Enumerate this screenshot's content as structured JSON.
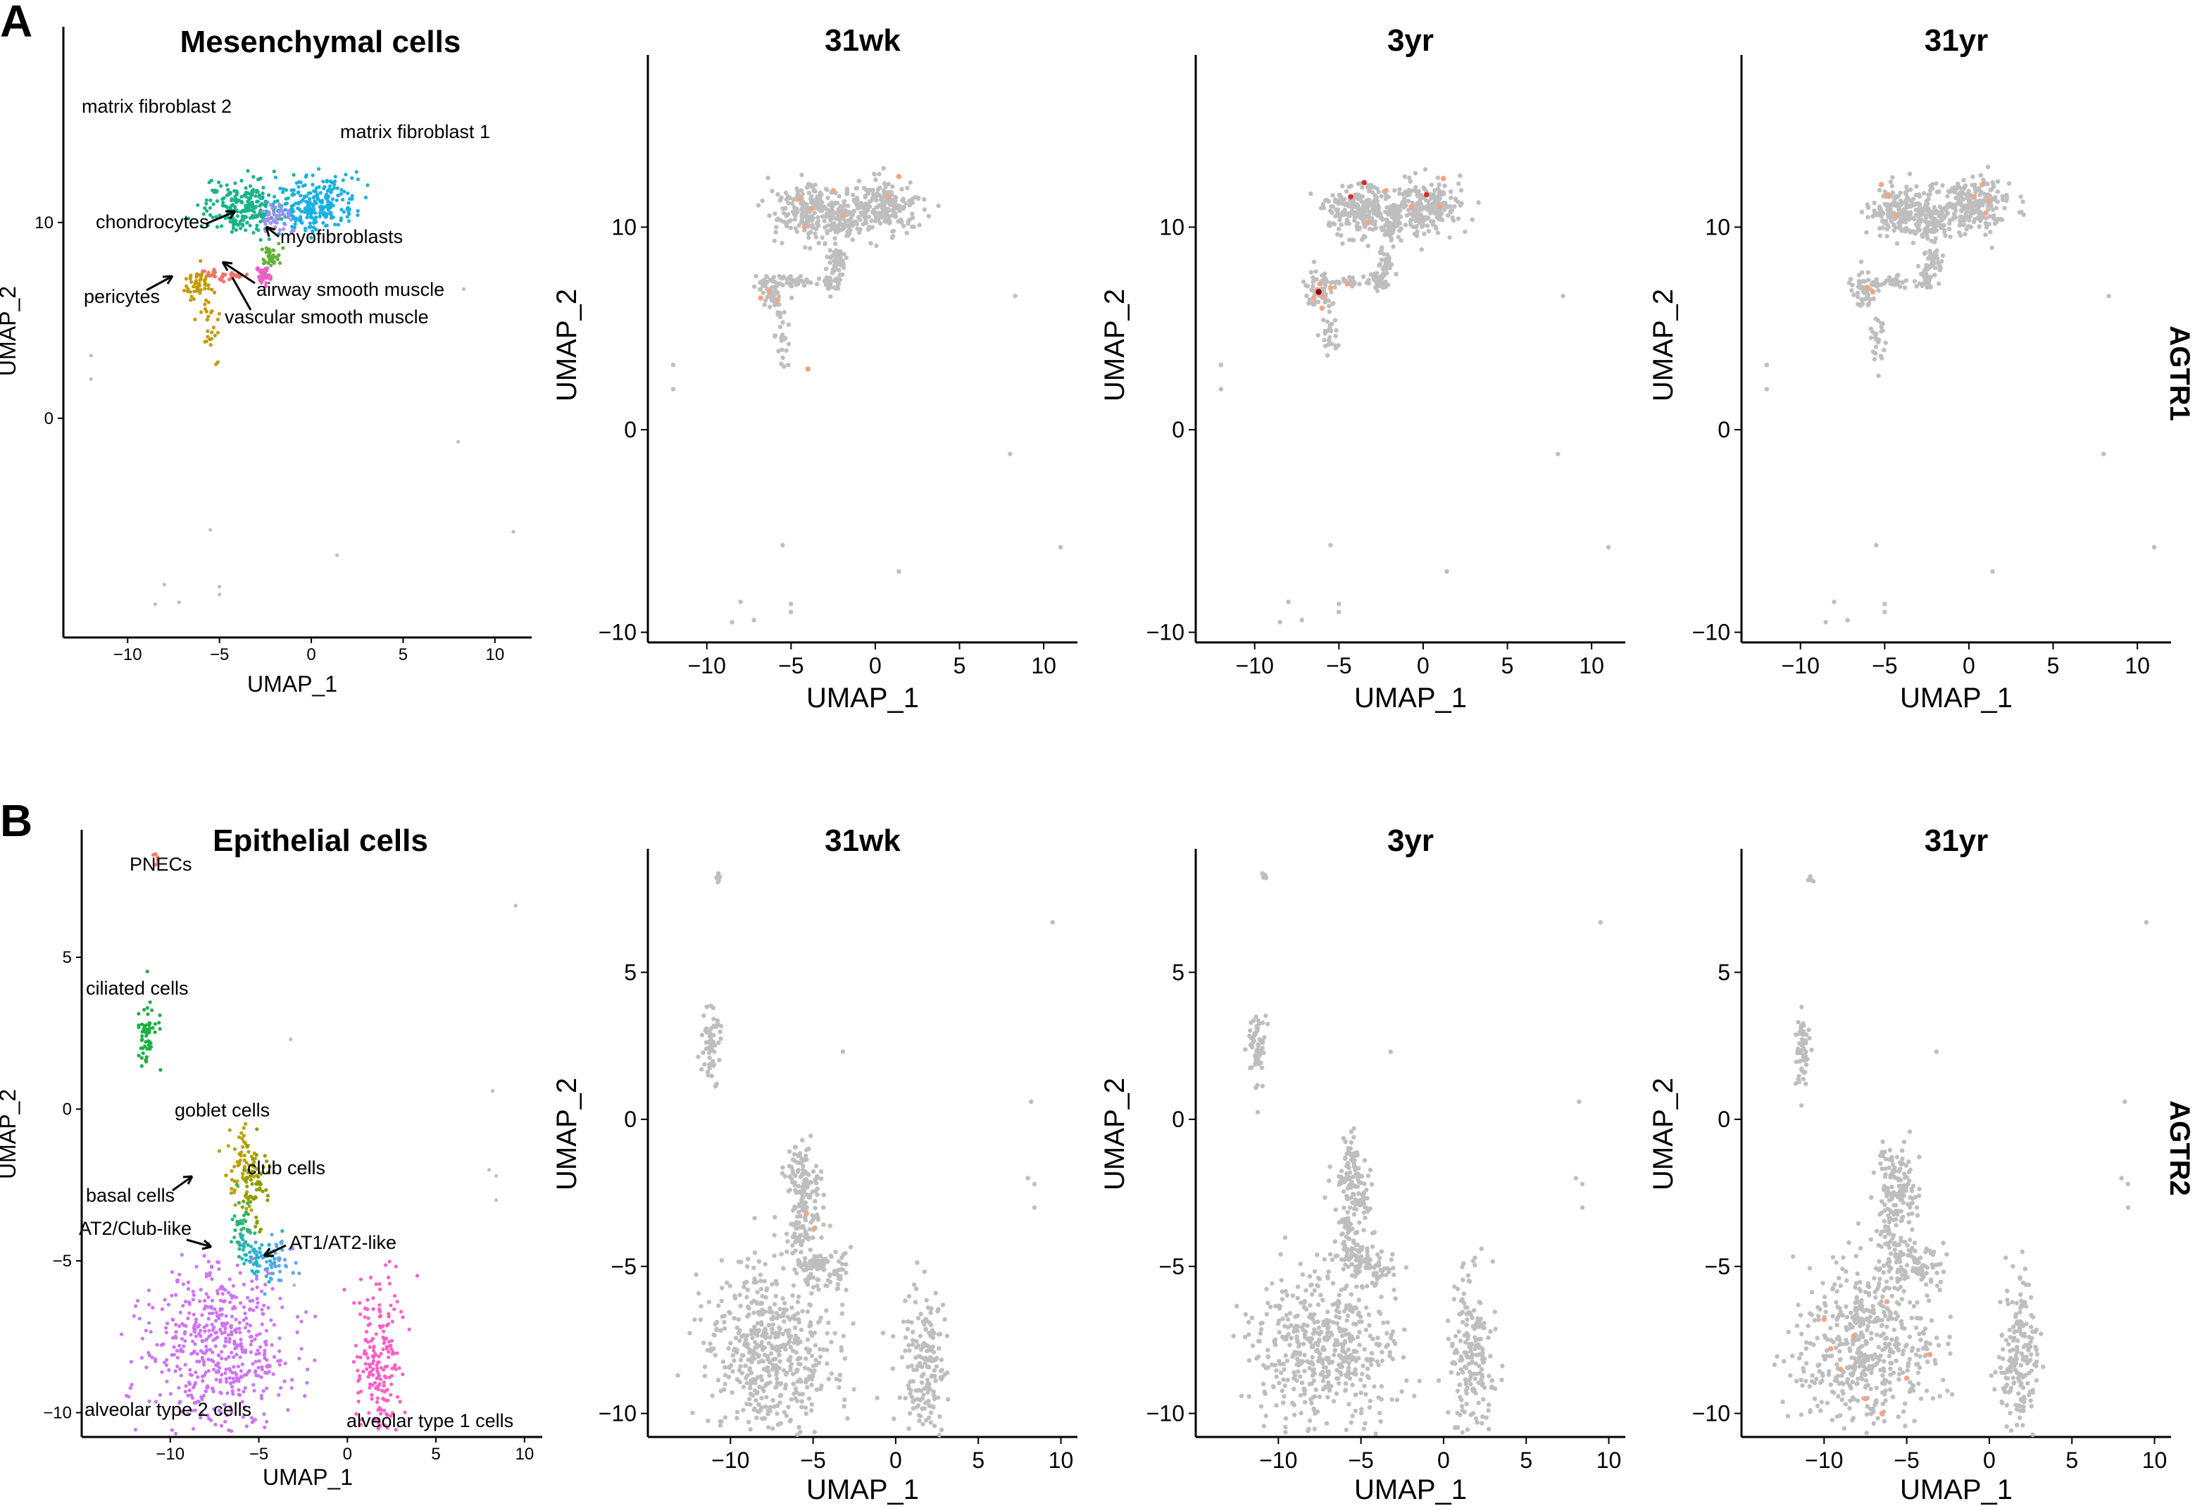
{
  "figure": {
    "panels": [
      {
        "letter": "A",
        "title": "Mesenchymal cells",
        "gene": "AGTR1",
        "timepoints": [
          "31wk",
          "3yr",
          "31yr"
        ]
      },
      {
        "letter": "B",
        "title": "Epithelial cells",
        "gene": "AGTR2",
        "timepoints": [
          "31wk",
          "3yr",
          "31yr"
        ]
      }
    ]
  },
  "colors": {
    "base_gray": "#bebebe",
    "expression_low": "#f4a582",
    "expression_high": "#d73027",
    "expression_max": "#8b0000",
    "axis": "#000000"
  },
  "chart_data": [
    {
      "id": "mes-cluster",
      "type": "scatter",
      "title": "Mesenchymal cells",
      "xlabel": "UMAP_1",
      "ylabel": "UMAP_2",
      "xlim": [
        -13.5,
        12
      ],
      "ylim": [
        -11.2,
        20
      ],
      "xticks": [
        -10,
        -5,
        0,
        5,
        10
      ],
      "yticks": [
        0,
        10
      ],
      "grid": false,
      "clusters": [
        {
          "label": "matrix fibroblast 2",
          "color": "#19b38a",
          "regions": [
            [
              -3.8,
              10.8,
              1.4,
              0.9
            ]
          ]
        },
        {
          "label": "matrix fibroblast 1",
          "color": "#18b0e3",
          "regions": [
            [
              0.2,
              11.0,
              1.5,
              0.9
            ]
          ]
        },
        {
          "label": "chondrocytes",
          "color": "#a58cf5",
          "regions": [
            [
              -1.9,
              10.2,
              0.5,
              0.5
            ]
          ]
        },
        {
          "label": "myofibroblasts",
          "color": "#62b336",
          "regions": [
            [
              -2.2,
              8.3,
              0.35,
              0.4
            ]
          ]
        },
        {
          "label": "airway smooth muscle",
          "color": "#ee5fc6",
          "regions": [
            [
              -2.6,
              7.3,
              0.35,
              0.35
            ]
          ]
        },
        {
          "label": "pericytes",
          "color": "#c39b0a",
          "regions": [
            [
              -6.2,
              6.8,
              0.5,
              0.6
            ]
          ]
        },
        {
          "label": "vascular smooth muscle",
          "color": "#f3736b",
          "regions": [
            [
              -4.8,
              7.3,
              1.0,
              0.18
            ]
          ]
        }
      ],
      "annotations": [
        "matrix fibroblast 2",
        "matrix fibroblast 1",
        "chondrocytes",
        "myofibroblasts",
        "pericytes",
        "airway smooth muscle",
        "vascular smooth muscle"
      ]
    },
    {
      "id": "mes-31wk",
      "type": "scatter",
      "title": "31wk",
      "gene": "AGTR1",
      "xlabel": "UMAP_1",
      "ylabel": "UMAP_2",
      "xlim": [
        -13.5,
        12
      ],
      "ylim": [
        -10.5,
        18.5
      ],
      "xticks": [
        -10,
        -5,
        0,
        5,
        10
      ],
      "yticks": [
        -10,
        0,
        10
      ],
      "grid": false,
      "expressing_cells": "sparse"
    },
    {
      "id": "mes-3yr",
      "type": "scatter",
      "title": "3yr",
      "gene": "AGTR1",
      "xlabel": "UMAP_1",
      "ylabel": "UMAP_2",
      "xlim": [
        -13.5,
        12
      ],
      "ylim": [
        -10.5,
        18.5
      ],
      "xticks": [
        -10,
        -5,
        0,
        5,
        10
      ],
      "yticks": [
        -10,
        0,
        10
      ],
      "grid": false,
      "expressing_cells": "moderate, concentrated in pericytes"
    },
    {
      "id": "mes-31yr",
      "type": "scatter",
      "title": "31yr",
      "gene": "AGTR1",
      "xlabel": "UMAP_1",
      "ylabel": "UMAP_2",
      "xlim": [
        -13.5,
        12
      ],
      "ylim": [
        -10.5,
        18.5
      ],
      "xticks": [
        -10,
        -5,
        0,
        5,
        10
      ],
      "yticks": [
        -10,
        0,
        10
      ],
      "grid": false,
      "expressing_cells": "sparse"
    },
    {
      "id": "epi-cluster",
      "type": "scatter",
      "title": "Epithelial cells",
      "xlabel": "UMAP_1",
      "ylabel": "UMAP_2",
      "xlim": [
        -15,
        11
      ],
      "ylim": [
        -10.8,
        9.2
      ],
      "xticks": [
        -10,
        -5,
        0,
        5,
        10
      ],
      "yticks": [
        -10,
        -5,
        0,
        5
      ],
      "grid": false,
      "clusters": [
        {
          "label": "PNECs",
          "color": "#f8766d",
          "regions": [
            [
              -10.8,
              8.2,
              0.15,
              0.12
            ]
          ]
        },
        {
          "label": "ciliated cells",
          "color": "#1bb140",
          "regions": [
            [
              -11.3,
              2.4,
              0.35,
              0.8
            ]
          ]
        },
        {
          "label": "goblet cells",
          "color": "#b9a200",
          "regions": [
            [
              -5.8,
              -2.0,
              0.6,
              0.9
            ]
          ]
        },
        {
          "label": "club cells",
          "color": "#8c9c00",
          "regions": [
            [
              -5.2,
              -2.6,
              0.5,
              0.9
            ]
          ]
        },
        {
          "label": "basal cells",
          "color": "#2fb47a",
          "regions": [
            [
              -6.0,
              -3.8,
              0.4,
              0.6
            ]
          ]
        },
        {
          "label": "AT2/Club-like",
          "color": "#22b5c9",
          "regions": [
            [
              -5.3,
              -4.8,
              0.8,
              0.5
            ]
          ]
        },
        {
          "label": "AT1/AT2-like",
          "color": "#59a8f0",
          "regions": [
            [
              -4.0,
              -5.0,
              0.9,
              0.4
            ]
          ]
        },
        {
          "label": "alveolar type 2 cells",
          "color": "#cd74f2",
          "regions": [
            [
              -7.4,
              -7.8,
              2.7,
              1.8
            ]
          ]
        },
        {
          "label": "alveolar type 1 cells",
          "color": "#ff5ec5",
          "regions": [
            [
              1.8,
              -8.2,
              0.9,
              1.8
            ]
          ]
        }
      ],
      "annotations": [
        "PNECs",
        "ciliated cells",
        "goblet cells",
        "club cells",
        "basal cells",
        "AT2/Club-like",
        "AT1/AT2-like",
        "alveolar type 2 cells",
        "alveolar type 1 cells"
      ]
    },
    {
      "id": "epi-31wk",
      "type": "scatter",
      "title": "31wk",
      "gene": "AGTR2",
      "xlabel": "UMAP_1",
      "ylabel": "UMAP_2",
      "xlim": [
        -15,
        11
      ],
      "ylim": [
        -10.8,
        9.2
      ],
      "xticks": [
        -10,
        -5,
        0,
        5,
        10
      ],
      "yticks": [
        -10,
        -5,
        0,
        5
      ],
      "grid": false,
      "expressing_cells": "very few"
    },
    {
      "id": "epi-3yr",
      "type": "scatter",
      "title": "3yr",
      "gene": "AGTR2",
      "xlabel": "UMAP_1",
      "ylabel": "UMAP_2",
      "xlim": [
        -15,
        11
      ],
      "ylim": [
        -10.8,
        9.2
      ],
      "xticks": [
        -10,
        -5,
        0,
        5,
        10
      ],
      "yticks": [
        -10,
        -5,
        0,
        5
      ],
      "grid": false,
      "expressing_cells": "none visible"
    },
    {
      "id": "epi-31yr",
      "type": "scatter",
      "title": "31yr",
      "gene": "AGTR2",
      "xlabel": "UMAP_1",
      "ylabel": "UMAP_2",
      "xlim": [
        -15,
        11
      ],
      "ylim": [
        -10.8,
        9.2
      ],
      "xticks": [
        -10,
        -5,
        0,
        5,
        10
      ],
      "yticks": [
        -10,
        -5,
        0,
        5
      ],
      "grid": false,
      "expressing_cells": "sparse, in alveolar type 2 cluster"
    }
  ]
}
